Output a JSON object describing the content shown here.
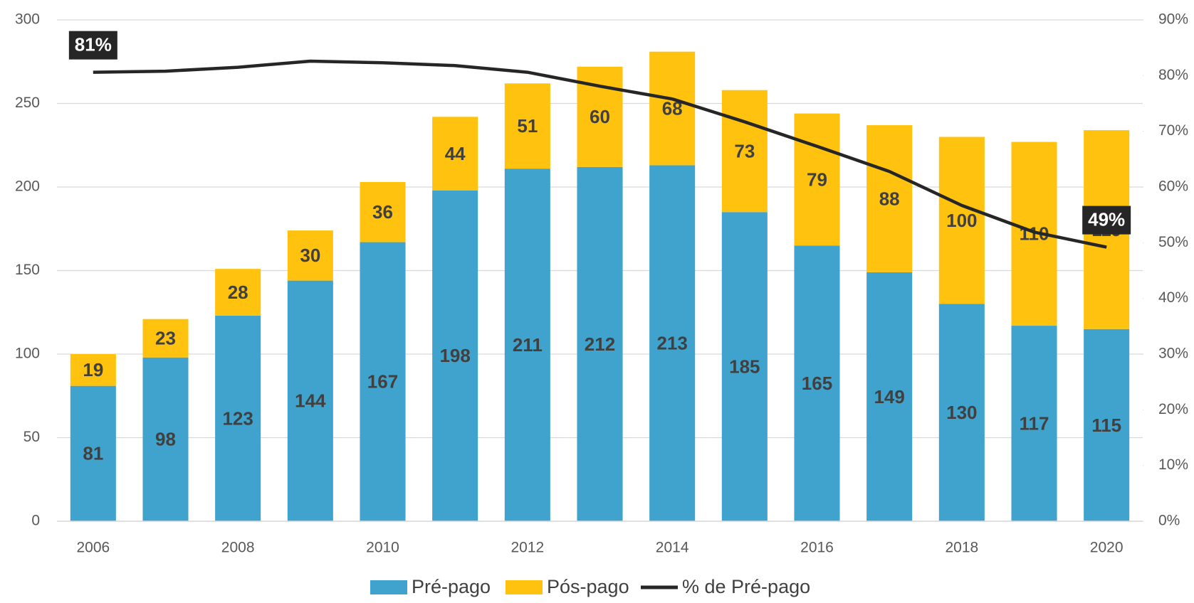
{
  "chart_data": {
    "type": "bar",
    "stacked": true,
    "categories": [
      "2006",
      null,
      "2008",
      null,
      "2010",
      null,
      "2012",
      null,
      "2014",
      null,
      "2016",
      null,
      "2018",
      null,
      "2020"
    ],
    "series": [
      {
        "name": "Pré-pago",
        "color": "#3fa3cd",
        "values": [
          81,
          98,
          123,
          144,
          167,
          198,
          211,
          212,
          213,
          185,
          165,
          149,
          130,
          117,
          115
        ]
      },
      {
        "name": "Pós-pago",
        "color": "#ffc20e",
        "values": [
          19,
          23,
          28,
          30,
          36,
          44,
          51,
          60,
          68,
          73,
          79,
          88,
          100,
          110,
          119
        ]
      },
      {
        "name": "% de Pré-pago",
        "type": "line",
        "axis": "y2",
        "color": "#262626",
        "values": [
          80.6,
          80.8,
          81.5,
          82.6,
          82.3,
          81.8,
          80.6,
          78.1,
          75.8,
          71.7,
          67.3,
          62.8,
          56.7,
          51.9,
          49.2
        ],
        "value_labels": [
          "81%",
          null,
          null,
          null,
          null,
          null,
          null,
          null,
          null,
          null,
          null,
          null,
          null,
          null,
          "49%"
        ]
      }
    ],
    "ylim": [
      0,
      300
    ],
    "yticks": [
      0,
      50,
      100,
      150,
      200,
      250,
      300
    ],
    "y2lim": [
      0,
      90
    ],
    "y2ticks": [
      {
        "value": 0,
        "label": "0%"
      },
      {
        "value": 10,
        "label": "10%"
      },
      {
        "value": 20,
        "label": "20%"
      },
      {
        "value": 30,
        "label": "30%"
      },
      {
        "value": 40,
        "label": "40%"
      },
      {
        "value": 50,
        "label": "50%"
      },
      {
        "value": 60,
        "label": "60%"
      },
      {
        "value": 70,
        "label": "70%"
      },
      {
        "value": 80,
        "label": "80%"
      },
      {
        "value": 90,
        "label": "90%"
      }
    ],
    "grid": true,
    "legend": "bottom"
  }
}
